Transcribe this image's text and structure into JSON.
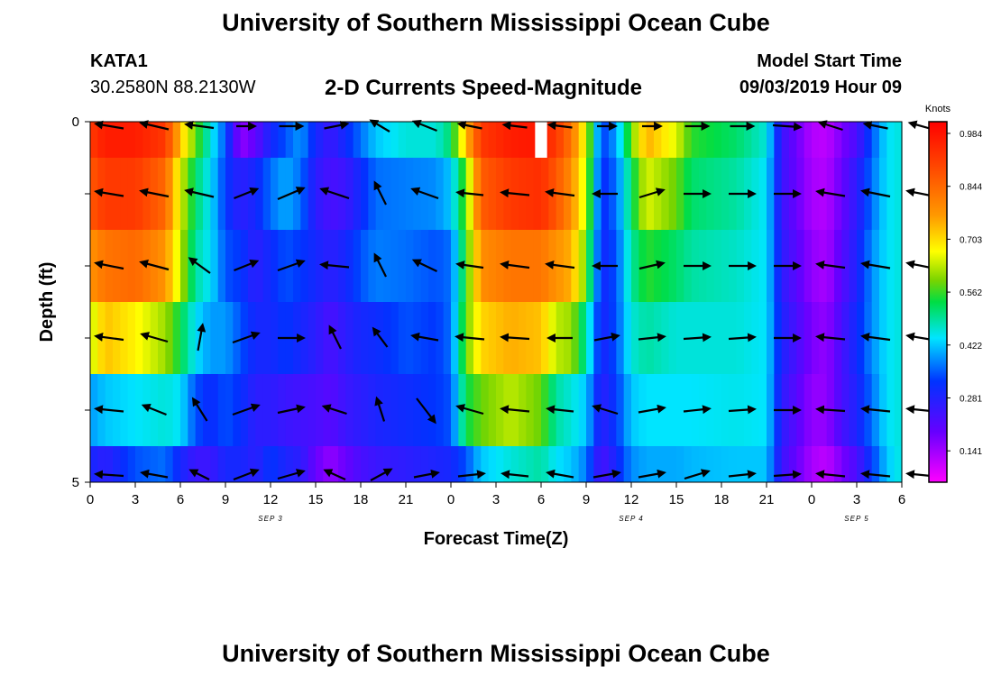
{
  "header": {
    "title": "University of Southern Mississippi Ocean Cube",
    "station_id": "KATA1",
    "station_coords": "30.2580N 88.2130W",
    "chart_title": "2-D Currents Speed-Magnitude",
    "model_label": "Model Start Time",
    "model_time": "09/03/2019 Hour 09"
  },
  "footer": {
    "title": "University of Southern Mississippi Ocean Cube"
  },
  "chart_data": {
    "type": "heatmap",
    "title": "2-D Currents Speed-Magnitude",
    "xlabel": "Forecast Time(Z)",
    "ylabel": "Depth (ft)",
    "x_ticks": [
      "0",
      "3",
      "6",
      "9",
      "12",
      "15",
      "18",
      "21",
      "0",
      "3",
      "6",
      "9",
      "12",
      "15",
      "18",
      "21",
      "0",
      "3",
      "6"
    ],
    "x_date_labels": [
      {
        "label": "SEP 3",
        "at_tick": 4
      },
      {
        "label": "SEP 4",
        "at_tick": 12
      },
      {
        "label": "SEP 5",
        "at_tick": 17
      }
    ],
    "y_ticks": [
      {
        "value": 0,
        "label": "0"
      },
      {
        "value": 1,
        "label": ""
      },
      {
        "value": 2,
        "label": ""
      },
      {
        "value": 3,
        "label": ""
      },
      {
        "value": 4,
        "label": ""
      },
      {
        "value": 5,
        "label": "5"
      }
    ],
    "ylim": [
      0,
      5
    ],
    "xlim_hours": [
      0,
      54
    ],
    "colorbar": {
      "title": "Knots",
      "ticks": [
        "0.984",
        "0.844",
        "0.703",
        "0.562",
        "0.422",
        "0.281",
        "0.141"
      ],
      "range": [
        0,
        1.0
      ]
    },
    "rows": [
      {
        "top": 0.0,
        "bottom": 0.5
      },
      {
        "top": 0.5,
        "bottom": 1.5
      },
      {
        "top": 1.5,
        "bottom": 2.5
      },
      {
        "top": 2.5,
        "bottom": 3.5
      },
      {
        "top": 3.5,
        "bottom": 4.5
      },
      {
        "top": 4.5,
        "bottom": 5.0
      }
    ],
    "speed_profile": [
      {
        "h": 0,
        "v": [
          0.9,
          0.85,
          0.75,
          0.6,
          0.35,
          0.25
        ]
      },
      {
        "h": 1,
        "v": [
          0.95,
          0.9,
          0.8,
          0.7,
          0.38,
          0.22
        ]
      },
      {
        "h": 3,
        "v": [
          0.95,
          0.9,
          0.82,
          0.65,
          0.4,
          0.3
        ]
      },
      {
        "h": 5,
        "v": [
          0.9,
          0.82,
          0.75,
          0.58,
          0.42,
          0.32
        ]
      },
      {
        "h": 6,
        "v": [
          0.7,
          0.62,
          0.6,
          0.5,
          0.4,
          0.25
        ]
      },
      {
        "h": 7,
        "v": [
          0.55,
          0.48,
          0.45,
          0.4,
          0.3,
          0.2
        ]
      },
      {
        "h": 8,
        "v": [
          0.42,
          0.4,
          0.4,
          0.35,
          0.26,
          0.2
        ]
      },
      {
        "h": 9,
        "v": [
          0.3,
          0.28,
          0.3,
          0.35,
          0.3,
          0.25
        ]
      },
      {
        "h": 10,
        "v": [
          0.1,
          0.22,
          0.28,
          0.3,
          0.27,
          0.25
        ]
      },
      {
        "h": 11,
        "v": [
          0.15,
          0.25,
          0.22,
          0.25,
          0.22,
          0.22
        ]
      },
      {
        "h": 12,
        "v": [
          0.25,
          0.32,
          0.26,
          0.25,
          0.22,
          0.28
        ]
      },
      {
        "h": 13,
        "v": [
          0.3,
          0.36,
          0.3,
          0.28,
          0.2,
          0.24
        ]
      },
      {
        "h": 14,
        "v": [
          0.35,
          0.32,
          0.28,
          0.25,
          0.19,
          0.22
        ]
      },
      {
        "h": 15,
        "v": [
          0.25,
          0.22,
          0.25,
          0.22,
          0.18,
          0.14
        ]
      },
      {
        "h": 16,
        "v": [
          0.2,
          0.18,
          0.22,
          0.18,
          0.16,
          0.1
        ]
      },
      {
        "h": 17,
        "v": [
          0.26,
          0.2,
          0.25,
          0.22,
          0.2,
          0.14
        ]
      },
      {
        "h": 18,
        "v": [
          0.32,
          0.26,
          0.3,
          0.25,
          0.22,
          0.18
        ]
      },
      {
        "h": 19,
        "v": [
          0.38,
          0.32,
          0.33,
          0.26,
          0.24,
          0.2
        ]
      },
      {
        "h": 21,
        "v": [
          0.42,
          0.33,
          0.32,
          0.3,
          0.26,
          0.22
        ]
      },
      {
        "h": 23,
        "v": [
          0.42,
          0.34,
          0.3,
          0.28,
          0.28,
          0.24
        ]
      },
      {
        "h": 24,
        "v": [
          0.48,
          0.38,
          0.32,
          0.32,
          0.3,
          0.25
        ]
      },
      {
        "h": 25,
        "v": [
          0.7,
          0.55,
          0.52,
          0.55,
          0.5,
          0.3
        ]
      },
      {
        "h": 26,
        "v": [
          0.9,
          0.84,
          0.76,
          0.68,
          0.55,
          0.38
        ]
      },
      {
        "h": 28,
        "v": [
          0.95,
          0.9,
          0.8,
          0.72,
          0.6,
          0.42
        ]
      },
      {
        "h": 30,
        "v": [
          0.96,
          0.92,
          0.8,
          0.7,
          0.55,
          0.45
        ]
      },
      {
        "h": 31,
        "v": [
          0.9,
          0.85,
          0.75,
          0.6,
          0.45,
          0.4
        ]
      },
      {
        "h": 32,
        "v": [
          0.8,
          0.76,
          0.72,
          0.58,
          0.42,
          0.38
        ]
      },
      {
        "h": 33,
        "v": [
          0.62,
          0.6,
          0.55,
          0.45,
          0.38,
          0.33
        ]
      },
      {
        "h": 34,
        "v": [
          0.28,
          0.26,
          0.25,
          0.24,
          0.22,
          0.18
        ]
      },
      {
        "h": 35,
        "v": [
          0.35,
          0.32,
          0.3,
          0.3,
          0.28,
          0.25
        ]
      },
      {
        "h": 36,
        "v": [
          0.55,
          0.48,
          0.45,
          0.42,
          0.38,
          0.34
        ]
      },
      {
        "h": 37,
        "v": [
          0.72,
          0.62,
          0.52,
          0.45,
          0.4,
          0.36
        ]
      },
      {
        "h": 39,
        "v": [
          0.62,
          0.55,
          0.48,
          0.42,
          0.4,
          0.36
        ]
      },
      {
        "h": 40,
        "v": [
          0.52,
          0.48,
          0.45,
          0.42,
          0.4,
          0.37
        ]
      },
      {
        "h": 43,
        "v": [
          0.48,
          0.45,
          0.43,
          0.42,
          0.41,
          0.38
        ]
      },
      {
        "h": 45,
        "v": [
          0.42,
          0.4,
          0.4,
          0.4,
          0.4,
          0.38
        ]
      },
      {
        "h": 46,
        "v": [
          0.2,
          0.2,
          0.22,
          0.24,
          0.22,
          0.2
        ]
      },
      {
        "h": 48,
        "v": [
          0.07,
          0.08,
          0.1,
          0.12,
          0.1,
          0.08
        ]
      },
      {
        "h": 49,
        "v": [
          0.06,
          0.07,
          0.08,
          0.1,
          0.1,
          0.06
        ]
      },
      {
        "h": 50,
        "v": [
          0.12,
          0.14,
          0.16,
          0.18,
          0.18,
          0.12
        ]
      },
      {
        "h": 51,
        "v": [
          0.18,
          0.22,
          0.24,
          0.26,
          0.24,
          0.18
        ]
      },
      {
        "h": 52,
        "v": [
          0.3,
          0.32,
          0.34,
          0.34,
          0.32,
          0.28
        ]
      },
      {
        "h": 53,
        "v": [
          0.4,
          0.4,
          0.4,
          0.4,
          0.4,
          0.38
        ]
      },
      {
        "h": 54,
        "v": [
          0.42,
          0.42,
          0.42,
          0.42,
          0.42,
          0.42
        ]
      }
    ],
    "missing_cells": [
      {
        "h": 30,
        "depth_top": 0.0,
        "depth_bottom": 0.5
      }
    ],
    "vector_depths": [
      0.0,
      1.0,
      2.0,
      3.0,
      4.0,
      5.0
    ],
    "vector_hours": [
      0,
      3,
      6,
      9,
      12,
      15,
      18,
      21,
      24,
      27,
      30,
      33,
      36,
      39,
      42,
      45,
      48,
      51,
      54
    ],
    "vectors": [
      [
        [
          -30,
          -5
        ],
        [
          -30,
          -7
        ],
        [
          -30,
          -4
        ],
        [
          20,
          0
        ],
        [
          25,
          0
        ],
        [
          25,
          -5
        ],
        [
          -20,
          -12
        ],
        [
          -25,
          -10
        ],
        [
          -25,
          -5
        ],
        [
          -25,
          -3
        ],
        [
          -25,
          -3
        ],
        [
          20,
          0
        ],
        [
          20,
          0
        ],
        [
          25,
          0
        ],
        [
          25,
          0
        ],
        [
          30,
          2
        ],
        [
          -25,
          -8
        ],
        [
          -25,
          -5
        ],
        [
          -25,
          -7
        ]
      ],
      [
        [
          -30,
          -5
        ],
        [
          -30,
          -6
        ],
        [
          -30,
          -7
        ],
        [
          25,
          -10
        ],
        [
          28,
          -12
        ],
        [
          -30,
          -10
        ],
        [
          -12,
          -24
        ],
        [
          -28,
          -10
        ],
        [
          -28,
          -3
        ],
        [
          -30,
          -3
        ],
        [
          -30,
          -4
        ],
        [
          -26,
          0
        ],
        [
          26,
          -8
        ],
        [
          28,
          0
        ],
        [
          28,
          0
        ],
        [
          28,
          0
        ],
        [
          -30,
          -5
        ],
        [
          -30,
          -6
        ],
        [
          -30,
          -6
        ]
      ],
      [
        [
          -30,
          -6
        ],
        [
          -30,
          -8
        ],
        [
          -22,
          -16
        ],
        [
          25,
          -10
        ],
        [
          28,
          -10
        ],
        [
          -30,
          -3
        ],
        [
          -12,
          -24
        ],
        [
          -25,
          -12
        ],
        [
          -28,
          -4
        ],
        [
          -30,
          -4
        ],
        [
          -30,
          -4
        ],
        [
          -26,
          0
        ],
        [
          26,
          -6
        ],
        [
          28,
          0
        ],
        [
          28,
          0
        ],
        [
          28,
          0
        ],
        [
          -30,
          -4
        ],
        [
          -30,
          -5
        ],
        [
          -30,
          -6
        ]
      ],
      [
        [
          -30,
          -4
        ],
        [
          -28,
          -8
        ],
        [
          5,
          -28
        ],
        [
          28,
          -10
        ],
        [
          28,
          0
        ],
        [
          -12,
          -24
        ],
        [
          -15,
          -20
        ],
        [
          -28,
          -5
        ],
        [
          -30,
          -3
        ],
        [
          -30,
          -2
        ],
        [
          -26,
          0
        ],
        [
          26,
          -5
        ],
        [
          28,
          -3
        ],
        [
          28,
          -2
        ],
        [
          28,
          -2
        ],
        [
          28,
          0
        ],
        [
          -30,
          -3
        ],
        [
          -30,
          -4
        ],
        [
          -30,
          -5
        ]
      ],
      [
        [
          -30,
          -3
        ],
        [
          -25,
          -10
        ],
        [
          -15,
          -24
        ],
        [
          28,
          -10
        ],
        [
          28,
          -6
        ],
        [
          -25,
          -8
        ],
        [
          -8,
          -25
        ],
        [
          20,
          26
        ],
        [
          -28,
          -8
        ],
        [
          -30,
          -3
        ],
        [
          -28,
          -3
        ],
        [
          -26,
          -8
        ],
        [
          28,
          -5
        ],
        [
          28,
          -3
        ],
        [
          28,
          -2
        ],
        [
          28,
          0
        ],
        [
          -30,
          -2
        ],
        [
          -30,
          -3
        ],
        [
          -30,
          -3
        ]
      ],
      [
        [
          -30,
          -2
        ],
        [
          -28,
          -5
        ],
        [
          -20,
          -10
        ],
        [
          26,
          -10
        ],
        [
          28,
          -8
        ],
        [
          -22,
          -10
        ],
        [
          22,
          -12
        ],
        [
          26,
          -5
        ],
        [
          28,
          -3
        ],
        [
          -28,
          -3
        ],
        [
          -28,
          -5
        ],
        [
          28,
          -5
        ],
        [
          28,
          -5
        ],
        [
          26,
          -8
        ],
        [
          28,
          -3
        ],
        [
          28,
          -2
        ],
        [
          -30,
          -3
        ],
        [
          -30,
          -3
        ],
        [
          -30,
          -3
        ]
      ]
    ]
  }
}
